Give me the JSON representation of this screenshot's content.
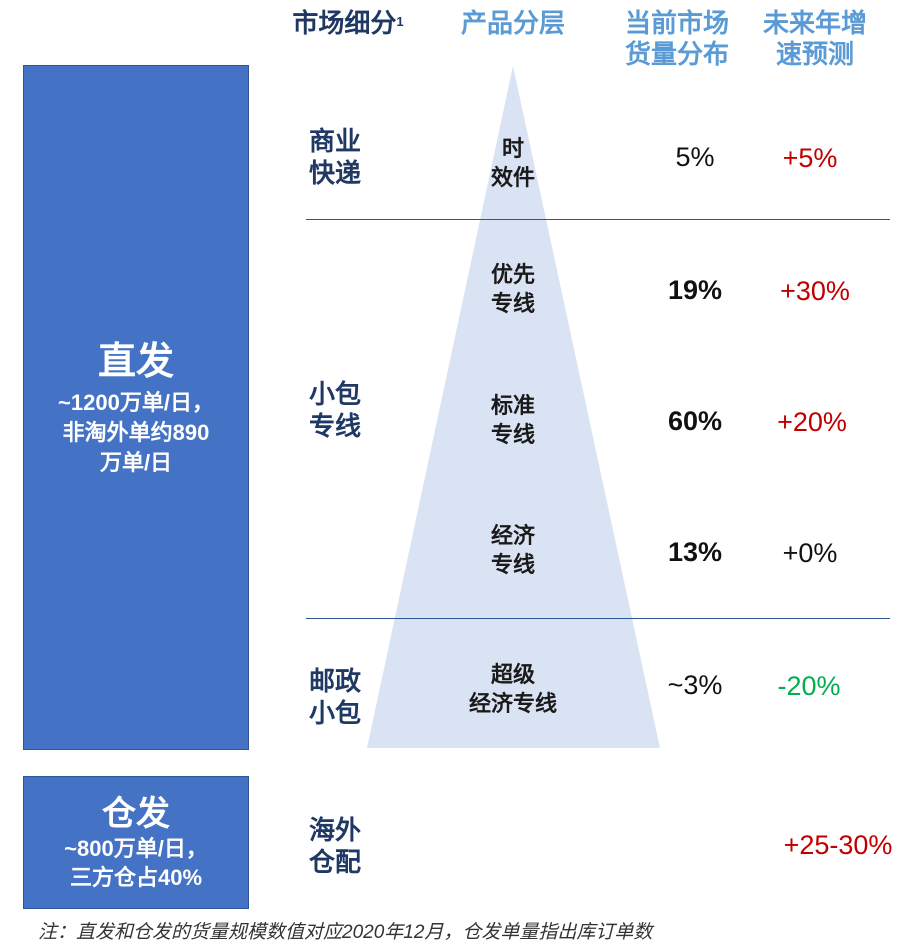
{
  "headers": {
    "segment": "市场细分",
    "segment_sup": "1",
    "product": "产品分层",
    "share_line1": "当前市场",
    "share_line2": "货量分布",
    "growth_line1": "未来年增",
    "growth_line2": "速预测"
  },
  "direct_box": {
    "title": "直发",
    "line1": "~1200万单/日，",
    "line2": "非淘外单约890",
    "line3": "万单/日"
  },
  "warehouse_box": {
    "title": "仓发",
    "line1": "~800万单/日，",
    "line2": "三方仓占40%"
  },
  "segments": {
    "commercial_l1": "商业",
    "commercial_l2": "快递",
    "small_l1": "小包",
    "small_l2": "专线",
    "postal_l1": "邮政",
    "postal_l2": "小包",
    "overseas_l1": "海外",
    "overseas_l2": "仓配"
  },
  "rows": [
    {
      "product_l1": "时",
      "product_l2": "效件",
      "share": "5%",
      "growth": "+5%"
    },
    {
      "product_l1": "优先",
      "product_l2": "专线",
      "share": "19%",
      "growth": "+30%"
    },
    {
      "product_l1": "标准",
      "product_l2": "专线",
      "share": "60%",
      "growth": "+20%"
    },
    {
      "product_l1": "经济",
      "product_l2": "专线",
      "share": "13%",
      "growth": "+0%"
    },
    {
      "product_l1": "超级",
      "product_l2": "经济专线",
      "share": "~3%",
      "growth": "-20%"
    },
    {
      "growth": "+25-30%"
    }
  ],
  "colors": {
    "box_blue": "#4472c4",
    "triangle": "#dae3f3",
    "header_dark": "#1f3864",
    "header_light": "#5b9bd5",
    "growth_red": "#c00000",
    "growth_green": "#00b050",
    "neutral": "#111111"
  },
  "note": "注：直发和仓发的货量规模数值对应2020年12月，仓发单量指出库订单数"
}
